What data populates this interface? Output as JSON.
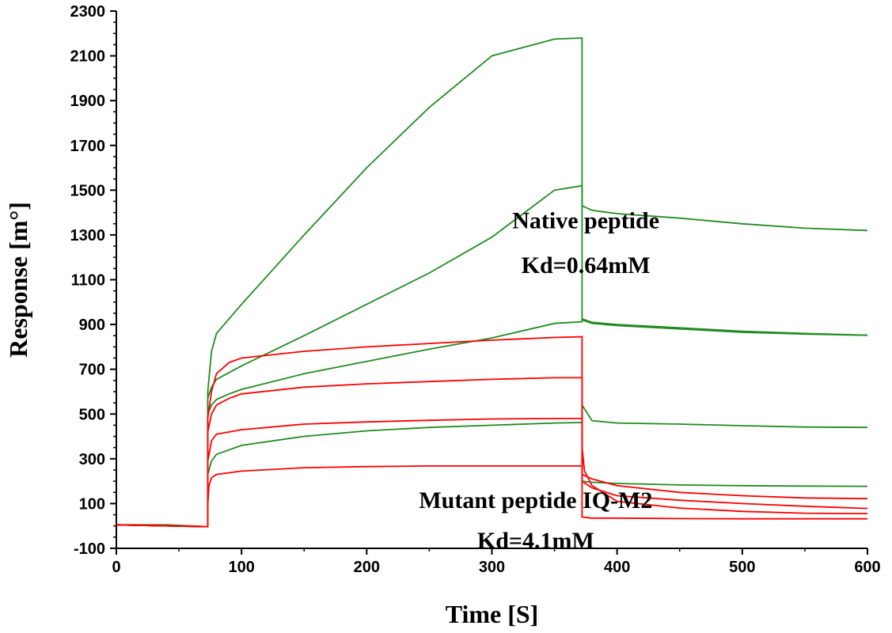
{
  "chart_data": {
    "type": "line",
    "title": "",
    "xlabel": "Time [S]",
    "ylabel": "Response [m°]",
    "xlim": [
      0,
      600
    ],
    "ylim": [
      -100,
      2300
    ],
    "xticks": [
      0,
      100,
      200,
      300,
      400,
      500,
      600
    ],
    "yticks": [
      -100,
      100,
      300,
      500,
      700,
      900,
      1100,
      1300,
      1500,
      1700,
      1900,
      2100,
      2300
    ],
    "grid": false,
    "colors": {
      "native": "#228b22",
      "mutant": "#ff0000"
    },
    "annotations": [
      {
        "id": "native",
        "lines": [
          "Native peptide",
          "Kd=0.64mM"
        ],
        "x": 375,
        "y": [
          1330,
          1130
        ]
      },
      {
        "id": "mutant",
        "lines": [
          "Mutant peptide IQ-M2",
          "Kd=4.1mM"
        ],
        "x": 335,
        "y": [
          80,
          -100
        ]
      }
    ],
    "series": [
      {
        "group": "native",
        "points": [
          [
            0,
            5
          ],
          [
            40,
            5
          ],
          [
            73,
            -3
          ],
          [
            73,
            230
          ],
          [
            76,
            290
          ],
          [
            80,
            320
          ],
          [
            100,
            360
          ],
          [
            150,
            400
          ],
          [
            200,
            425
          ],
          [
            250,
            440
          ],
          [
            300,
            450
          ],
          [
            350,
            460
          ],
          [
            372,
            462
          ],
          [
            372,
            200
          ],
          [
            380,
            195
          ],
          [
            400,
            190
          ],
          [
            450,
            183
          ],
          [
            500,
            180
          ],
          [
            550,
            178
          ],
          [
            600,
            177
          ]
        ]
      },
      {
        "group": "native",
        "points": [
          [
            0,
            5
          ],
          [
            73,
            -3
          ],
          [
            73,
            500
          ],
          [
            76,
            540
          ],
          [
            80,
            565
          ],
          [
            90,
            590
          ],
          [
            100,
            610
          ],
          [
            150,
            680
          ],
          [
            200,
            735
          ],
          [
            250,
            790
          ],
          [
            300,
            840
          ],
          [
            350,
            905
          ],
          [
            372,
            912
          ],
          [
            372,
            925
          ],
          [
            380,
            910
          ],
          [
            400,
            900
          ],
          [
            450,
            885
          ],
          [
            500,
            870
          ],
          [
            550,
            860
          ],
          [
            600,
            852
          ]
        ]
      },
      {
        "group": "native",
        "points": [
          [
            0,
            5
          ],
          [
            73,
            -3
          ],
          [
            73,
            570
          ],
          [
            76,
            620
          ],
          [
            80,
            655
          ],
          [
            100,
            715
          ],
          [
            150,
            850
          ],
          [
            200,
            990
          ],
          [
            250,
            1130
          ],
          [
            300,
            1290
          ],
          [
            350,
            1500
          ],
          [
            372,
            1520
          ],
          [
            372,
            1430
          ],
          [
            380,
            1410
          ],
          [
            400,
            1395
          ],
          [
            450,
            1375
          ],
          [
            500,
            1350
          ],
          [
            550,
            1330
          ],
          [
            600,
            1320
          ]
        ]
      },
      {
        "group": "native",
        "points": [
          [
            0,
            5
          ],
          [
            73,
            -3
          ],
          [
            73,
            600
          ],
          [
            76,
            780
          ],
          [
            80,
            860
          ],
          [
            100,
            990
          ],
          [
            150,
            1300
          ],
          [
            200,
            1600
          ],
          [
            250,
            1870
          ],
          [
            300,
            2100
          ],
          [
            350,
            2175
          ],
          [
            372,
            2180
          ],
          [
            372,
            920
          ],
          [
            380,
            905
          ],
          [
            400,
            895
          ],
          [
            450,
            880
          ],
          [
            500,
            865
          ],
          [
            550,
            857
          ],
          [
            600,
            852
          ]
        ]
      },
      {
        "group": "native",
        "points": [
          [
            372,
            540
          ],
          [
            380,
            470
          ],
          [
            400,
            460
          ],
          [
            450,
            455
          ],
          [
            500,
            448
          ],
          [
            550,
            442
          ],
          [
            600,
            440
          ]
        ]
      },
      {
        "group": "mutant",
        "points": [
          [
            0,
            5
          ],
          [
            73,
            -3
          ],
          [
            73,
            95
          ],
          [
            74,
            180
          ],
          [
            76,
            215
          ],
          [
            80,
            230
          ],
          [
            100,
            245
          ],
          [
            150,
            260
          ],
          [
            200,
            265
          ],
          [
            250,
            268
          ],
          [
            300,
            268
          ],
          [
            350,
            268
          ],
          [
            372,
            268
          ],
          [
            372,
            40
          ],
          [
            380,
            35
          ],
          [
            400,
            35
          ],
          [
            450,
            33
          ],
          [
            500,
            32
          ],
          [
            550,
            32
          ],
          [
            600,
            32
          ]
        ]
      },
      {
        "group": "mutant",
        "points": [
          [
            0,
            5
          ],
          [
            73,
            -3
          ],
          [
            73,
            290
          ],
          [
            76,
            380
          ],
          [
            80,
            410
          ],
          [
            100,
            430
          ],
          [
            150,
            455
          ],
          [
            200,
            465
          ],
          [
            250,
            472
          ],
          [
            300,
            478
          ],
          [
            350,
            480
          ],
          [
            372,
            480
          ],
          [
            372,
            350
          ],
          [
            374,
            245
          ],
          [
            380,
            180
          ],
          [
            400,
            110
          ],
          [
            450,
            80
          ],
          [
            500,
            65
          ],
          [
            550,
            57
          ],
          [
            600,
            55
          ]
        ]
      },
      {
        "group": "mutant",
        "points": [
          [
            0,
            5
          ],
          [
            73,
            -3
          ],
          [
            73,
            420
          ],
          [
            76,
            500
          ],
          [
            80,
            540
          ],
          [
            90,
            570
          ],
          [
            100,
            590
          ],
          [
            150,
            620
          ],
          [
            200,
            635
          ],
          [
            250,
            645
          ],
          [
            300,
            655
          ],
          [
            350,
            662
          ],
          [
            372,
            662
          ],
          [
            372,
            200
          ],
          [
            380,
            170
          ],
          [
            400,
            135
          ],
          [
            450,
            115
          ],
          [
            500,
            100
          ],
          [
            550,
            88
          ],
          [
            600,
            78
          ]
        ]
      },
      {
        "group": "mutant",
        "points": [
          [
            0,
            5
          ],
          [
            73,
            -3
          ],
          [
            73,
            480
          ],
          [
            76,
            600
          ],
          [
            80,
            680
          ],
          [
            90,
            730
          ],
          [
            100,
            750
          ],
          [
            150,
            780
          ],
          [
            200,
            800
          ],
          [
            250,
            815
          ],
          [
            300,
            830
          ],
          [
            350,
            842
          ],
          [
            372,
            845
          ],
          [
            372,
            230
          ],
          [
            380,
            210
          ],
          [
            400,
            180
          ],
          [
            450,
            150
          ],
          [
            500,
            135
          ],
          [
            550,
            125
          ],
          [
            600,
            122
          ]
        ]
      }
    ]
  }
}
